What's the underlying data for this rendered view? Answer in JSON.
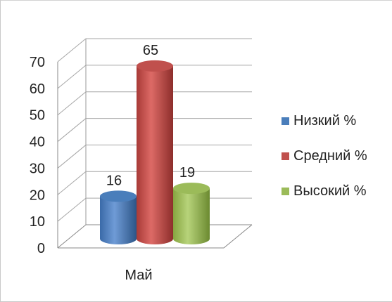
{
  "chart_data": {
    "type": "bar",
    "style": "3d-cylinder",
    "categories": [
      "Май"
    ],
    "series": [
      {
        "name": "Низкий %",
        "values": [
          16
        ],
        "color": "#4a7ebb"
      },
      {
        "name": "Средний %",
        "values": [
          65
        ],
        "color": "#c0504d"
      },
      {
        "name": "Высокий %",
        "values": [
          19
        ],
        "color": "#9bbb59"
      }
    ],
    "y_ticks": [
      "0",
      "10",
      "20",
      "30",
      "40",
      "50",
      "60",
      "70"
    ],
    "ylim": [
      0,
      70
    ],
    "grid": true,
    "data_labels": true,
    "legend_position": "right"
  }
}
